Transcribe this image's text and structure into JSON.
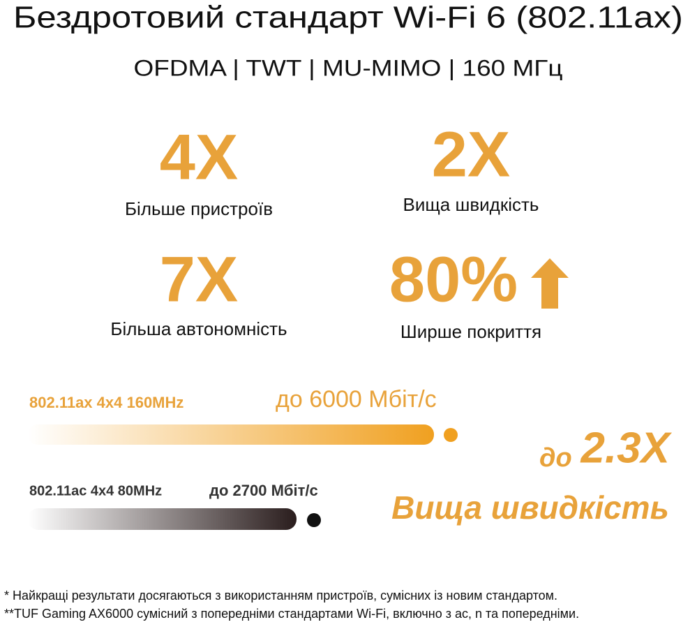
{
  "header": {
    "title": "Бездротовий стандарт Wi-Fi 6 (802.11ax)",
    "subtitle": "OFDMA | TWT | MU-MIMO | 160 МГц"
  },
  "stats": [
    {
      "value": "4X",
      "label": "Більше пристроїв"
    },
    {
      "value": "2X",
      "label": "Вища швидкість"
    },
    {
      "value": "7X",
      "label": "Більша автономність"
    },
    {
      "value": "80%",
      "label": "Ширше покриття"
    }
  ],
  "comparison": [
    {
      "label": "802.11ax 4x4 160MHz",
      "speed": "до 6000 Мбіт/с"
    },
    {
      "label": "802.11ac 4x4 80MHz",
      "speed": "до 2700 Мбіт/с"
    }
  ],
  "highlight": {
    "prefix": "до",
    "value": "2.3X",
    "label": "Вища швидкість"
  },
  "footnotes": [
    "* Найкращі результати досягаються з використанням пристроїв, сумісних із новим стандартом.",
    "**TUF Gaming AX6000 сумісний з попередніми стандартами Wi-Fi, включно з ac, n та попередніми."
  ]
}
